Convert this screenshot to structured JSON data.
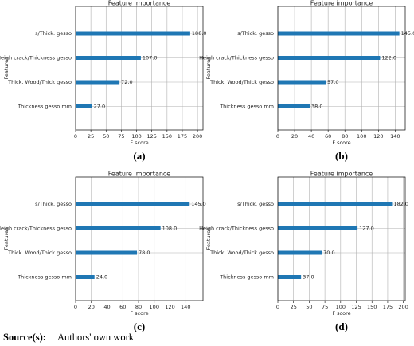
{
  "chart_data": [
    {
      "type": "bar",
      "orientation": "horizontal",
      "title": "Feature importance",
      "x_label": "F score",
      "y_label": "Features",
      "caption": "(a)",
      "categories": [
        "s/Thick. gesso",
        "Heigh crack/Thickness gesso",
        "Thick. Wood/Thick gesso",
        "Thickness gesso mm"
      ],
      "values": [
        188,
        107,
        72,
        27
      ],
      "value_labels": [
        "188.0",
        "107.0",
        "72.0",
        "27.0"
      ],
      "color": "#1f77b4",
      "xlim": [
        0,
        209
      ],
      "xticks": [
        0,
        25,
        50,
        75,
        100,
        125,
        150,
        175,
        200
      ],
      "grid": true
    },
    {
      "type": "bar",
      "orientation": "horizontal",
      "title": "Feature importance",
      "x_label": "F score",
      "y_label": "Features",
      "caption": "(b)",
      "categories": [
        "s/Thick. gesso",
        "Heigh crack/Thickness gesso",
        "Thick. Wood/Thick gesso",
        "Thickness gesso mm"
      ],
      "values": [
        145,
        122,
        57,
        38
      ],
      "value_labels": [
        "145.0",
        "122.0",
        "57.0",
        "38.0"
      ],
      "color": "#1f77b4",
      "xlim": [
        0,
        152
      ],
      "xticks": [
        0,
        20,
        40,
        60,
        80,
        100,
        120,
        140
      ],
      "grid": true
    },
    {
      "type": "bar",
      "orientation": "horizontal",
      "title": "Feature importance",
      "x_label": "F score",
      "y_label": "Features",
      "caption": "(c)",
      "categories": [
        "s/Thick. gesso",
        "Heigh crack/Thickness gesso",
        "Thick. Wood/Thick gesso",
        "Thickness gesso mm"
      ],
      "values": [
        145,
        108,
        78,
        24
      ],
      "value_labels": [
        "145.0",
        "108.0",
        "78.0",
        "24.0"
      ],
      "color": "#1f77b4",
      "xlim": [
        0,
        162
      ],
      "xticks": [
        0,
        20,
        40,
        60,
        80,
        100,
        120,
        140
      ],
      "grid": true
    },
    {
      "type": "bar",
      "orientation": "horizontal",
      "title": "Feature importance",
      "x_label": "F score",
      "y_label": "Features",
      "caption": "(d)",
      "categories": [
        "s/Thick. gesso",
        "Heigh crack/Thickness gesso",
        "Thick. Wood/Thick gesso",
        "Thickness gesso mm"
      ],
      "values": [
        182,
        127,
        70,
        37
      ],
      "value_labels": [
        "182.0",
        "127.0",
        "70.0",
        "37.0"
      ],
      "color": "#1f77b4",
      "xlim": [
        0,
        203
      ],
      "xticks": [
        0,
        25,
        50,
        75,
        100,
        125,
        150,
        175,
        200
      ],
      "grid": true
    }
  ],
  "source": {
    "label": "Source(s):",
    "text": "Authors' own work"
  }
}
